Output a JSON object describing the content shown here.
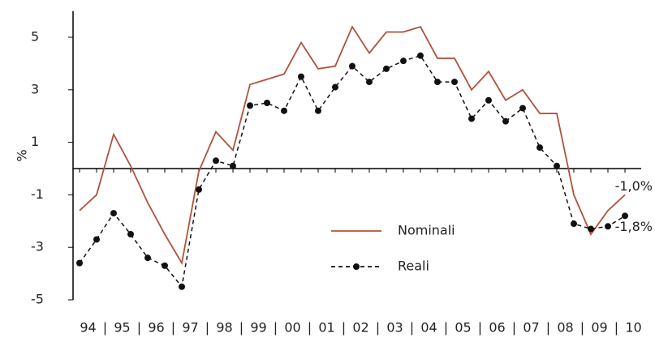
{
  "chart_data": {
    "type": "line",
    "y_label": "%",
    "categories": [
      "94",
      null,
      "95",
      null,
      "96",
      null,
      "97",
      null,
      "98",
      null,
      "99",
      null,
      "00",
      null,
      "01",
      null,
      "02",
      null,
      "03",
      null,
      "04",
      null,
      "05",
      null,
      "06",
      null,
      "07",
      null,
      "08",
      null,
      "09",
      null,
      "10"
    ],
    "series": [
      {
        "name": "Nominali",
        "color": "#b0523a",
        "style": "solid",
        "values": [
          -1.6,
          -1.0,
          1.3,
          0.1,
          -1.3,
          -2.5,
          -3.6,
          -0.1,
          1.4,
          0.7,
          3.2,
          3.4,
          3.6,
          4.8,
          3.8,
          3.9,
          5.4,
          4.4,
          5.2,
          5.2,
          5.4,
          4.2,
          4.2,
          3.0,
          3.7,
          2.6,
          3.0,
          2.1,
          2.1,
          -1.0,
          -2.5,
          -1.6,
          -1.0
        ]
      },
      {
        "name": "Reali",
        "color": "#111111",
        "style": "dashed-markers",
        "values": [
          -3.6,
          -2.7,
          -1.7,
          -2.5,
          -3.4,
          -3.7,
          -4.5,
          -0.8,
          0.3,
          0.1,
          2.4,
          2.5,
          2.2,
          3.5,
          2.2,
          3.1,
          3.9,
          3.3,
          3.8,
          4.1,
          4.3,
          3.3,
          3.3,
          1.9,
          2.6,
          1.8,
          2.3,
          0.8,
          0.1,
          -2.1,
          -2.3,
          -2.2,
          -1.8
        ]
      }
    ],
    "annotations": [
      {
        "text": "-1,0%",
        "series": 0
      },
      {
        "text": "-1,8%",
        "series": 1
      }
    ],
    "ylim": [
      -5,
      6
    ],
    "yticks": [
      -5,
      -3,
      -1,
      1,
      3,
      5
    ]
  }
}
